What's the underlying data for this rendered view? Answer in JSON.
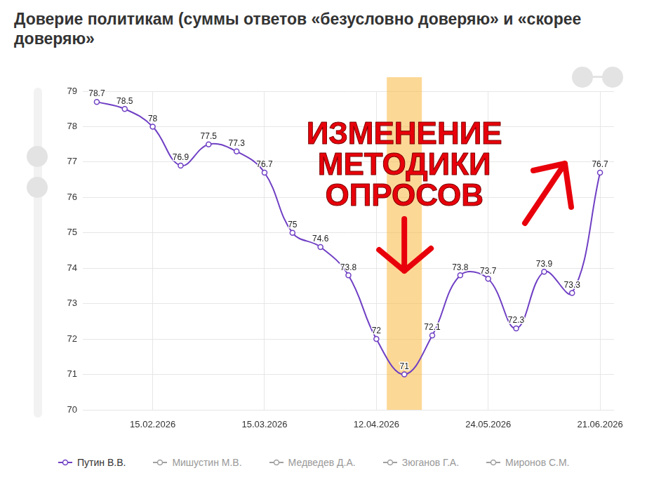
{
  "chart_data": {
    "type": "line",
    "title": "Доверие политикам (суммы ответов «безусловно доверяю» и «скорее доверяю»",
    "annotations": [
      "ИЗМЕНЕНИЕ МЕТОДИКИ ОПРОСОВ"
    ],
    "categories": [
      null,
      null,
      "15.02.2026",
      null,
      null,
      null,
      "15.03.2026",
      null,
      null,
      null,
      "12.04.2026",
      null,
      null,
      null,
      "24.05.2026",
      null,
      null,
      null,
      "21.06.2026"
    ],
    "series": [
      {
        "name": "Путин В.В.",
        "color": "#6f3fc4",
        "marker": "circle",
        "values": [
          78.7,
          78.5,
          78,
          76.9,
          77.5,
          77.3,
          76.7,
          75,
          74.6,
          73.8,
          72,
          71,
          72.1,
          73.8,
          73.7,
          72.3,
          73.9,
          73.3,
          76.7
        ]
      },
      {
        "name": "Мишустин М.В.",
        "color": "#a0a0a0",
        "marker": "circle",
        "values": [
          null,
          null,
          null,
          null,
          null,
          null,
          null,
          null,
          null,
          null,
          null,
          null,
          null,
          null,
          null,
          null,
          null,
          null,
          null
        ]
      },
      {
        "name": "Медведев Д.А.",
        "color": "#a0a0a0",
        "marker": "circle",
        "values": [
          null,
          null,
          null,
          null,
          null,
          null,
          null,
          null,
          null,
          null,
          null,
          null,
          null,
          null,
          null,
          null,
          null,
          null,
          null
        ]
      },
      {
        "name": "Зюганов Г.А.",
        "color": "#a0a0a0",
        "marker": "circle",
        "values": [
          null,
          null,
          null,
          null,
          null,
          null,
          null,
          null,
          null,
          null,
          null,
          null,
          null,
          null,
          null,
          null,
          null,
          null,
          null
        ]
      },
      {
        "name": "Миронов С.М.",
        "color": "#a0a0a0",
        "marker": "circle",
        "values": [
          null,
          null,
          null,
          null,
          null,
          null,
          null,
          null,
          null,
          null,
          null,
          null,
          null,
          null,
          null,
          null,
          null,
          null,
          null
        ]
      }
    ],
    "ylim": [
      70,
      79
    ],
    "yticks": [
      70,
      71,
      72,
      73,
      74,
      75,
      76,
      77,
      78,
      79
    ],
    "grid": true,
    "legend": "bottom",
    "data_labels": true
  }
}
